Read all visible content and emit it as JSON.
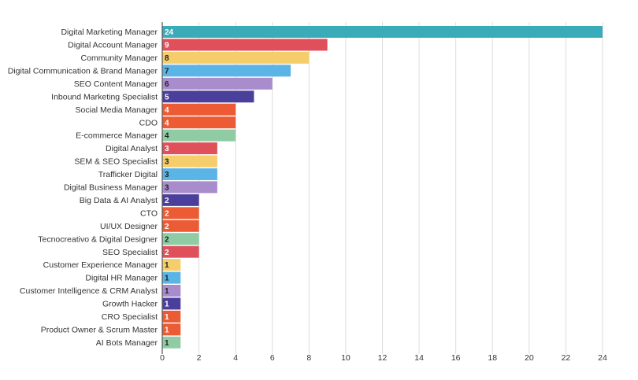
{
  "chart_data": {
    "type": "bar",
    "orientation": "horizontal",
    "title": "",
    "xlabel": "",
    "ylabel": "",
    "xlim": [
      0,
      24
    ],
    "x_ticks": [
      0,
      2,
      4,
      6,
      8,
      10,
      12,
      14,
      16,
      18,
      20,
      22,
      24
    ],
    "grid": "vertical",
    "legend": "none",
    "categories": [
      "Digital Marketing Manager",
      "Digital Account Manager",
      "Community Manager",
      "Digital Communication & Brand Manager",
      "SEO Content Manager",
      "Inbound Marketing Specialist",
      "Social Media Manager",
      "CDO",
      "E-commerce Manager",
      "Digital Analyst",
      "SEM & SEO Specialist",
      "Trafficker Digital",
      "Digital Business Manager",
      "Big Data & AI Analyst",
      "CTO",
      "UI/UX Designer",
      "Tecnocreativo & Digital Designer",
      "SEO Specialist",
      "Customer Experience Manager",
      "Digital HR Manager",
      "Customer Intelligence & CRM Analyst",
      "Growth Hacker",
      "CRO Specialist",
      "Product Owner & Scrum Master",
      "AI Bots Manager"
    ],
    "values": [
      24,
      9,
      8,
      7,
      6,
      5,
      4,
      4,
      4,
      3,
      3,
      3,
      3,
      2,
      2,
      2,
      2,
      2,
      1,
      1,
      1,
      1,
      1,
      1,
      1
    ],
    "colors": [
      "#3aabb8",
      "#e0505a",
      "#f5cd6a",
      "#5ab4e6",
      "#a98ccc",
      "#4b3f9c",
      "#ec5b34",
      "#ec5b34",
      "#8fcca4",
      "#e0505a",
      "#f5cd6a",
      "#5ab4e6",
      "#a98ccc",
      "#4b3f9c",
      "#ec5b34",
      "#ec5b34",
      "#8fcca4",
      "#e0505a",
      "#f5cd6a",
      "#5ab4e6",
      "#a98ccc",
      "#4b3f9c",
      "#ec5b34",
      "#ec5b34",
      "#8fcca4"
    ],
    "label_colors": [
      "#ffffff",
      "#ffffff",
      "#222222",
      "#222222",
      "#222222",
      "#ffffff",
      "#ffffff",
      "#ffffff",
      "#222222",
      "#ffffff",
      "#222222",
      "#222222",
      "#222222",
      "#ffffff",
      "#ffffff",
      "#ffffff",
      "#222222",
      "#ffffff",
      "#222222",
      "#222222",
      "#222222",
      "#ffffff",
      "#ffffff",
      "#ffffff",
      "#222222"
    ],
    "grid_color": "#dddddd",
    "axis_color": "#555555"
  }
}
